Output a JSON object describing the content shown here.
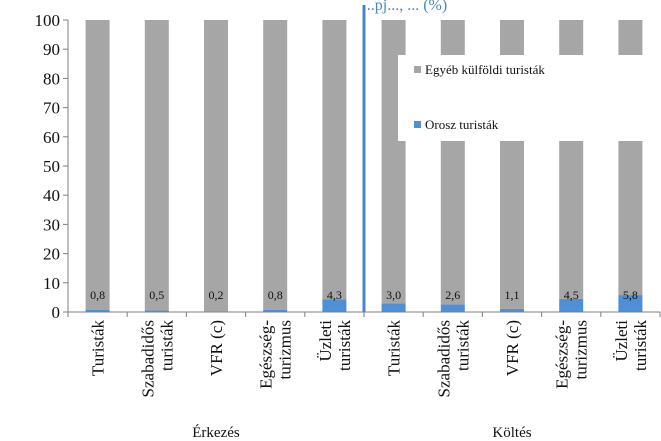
{
  "chart_data": {
    "type": "bar",
    "stacked": true,
    "title_fragment": "...pj..., ... (%)",
    "ylim": [
      0,
      100
    ],
    "yticks": [
      0,
      10,
      20,
      30,
      40,
      50,
      60,
      70,
      80,
      90,
      100
    ],
    "grid": false,
    "legend_position": "top-right",
    "categories": [
      [
        "Turisták"
      ],
      [
        "Szabadidős",
        "turisták"
      ],
      [
        "VFR (c)"
      ],
      [
        "Egészség-",
        "turizmus"
      ],
      [
        "Üzleti",
        "turisták"
      ],
      [
        "Turisták"
      ],
      [
        "Szabadidős",
        "turisták"
      ],
      [
        "VFR (c)"
      ],
      [
        "Egészség-",
        "turizmus"
      ],
      [
        "Üzleti",
        "turisták"
      ]
    ],
    "groups": [
      {
        "label": "Érkezés",
        "start": 0,
        "end": 4
      },
      {
        "label": "Költés",
        "start": 5,
        "end": 9
      }
    ],
    "series": [
      {
        "name": "Orosz turisták",
        "color": "#4f8fd6",
        "values": [
          0.8,
          0.5,
          0.2,
          0.8,
          4.3,
          3.0,
          2.6,
          1.1,
          4.5,
          5.8
        ],
        "labels": [
          "0,8",
          "0,5",
          "0,2",
          "0,8",
          "4,3",
          "3,0",
          "2,6",
          "1,1",
          "4,5",
          "5,8"
        ]
      },
      {
        "name": "Egyéb külföldi turisták",
        "color": "#a6a6a6",
        "values": [
          99.2,
          99.5,
          99.8,
          99.2,
          95.7,
          97.0,
          97.4,
          98.9,
          95.5,
          94.2
        ]
      }
    ],
    "legend": [
      "Egyéb külföldi turisták",
      "Orosz turisták"
    ],
    "separator_color": "#4a86c5"
  }
}
